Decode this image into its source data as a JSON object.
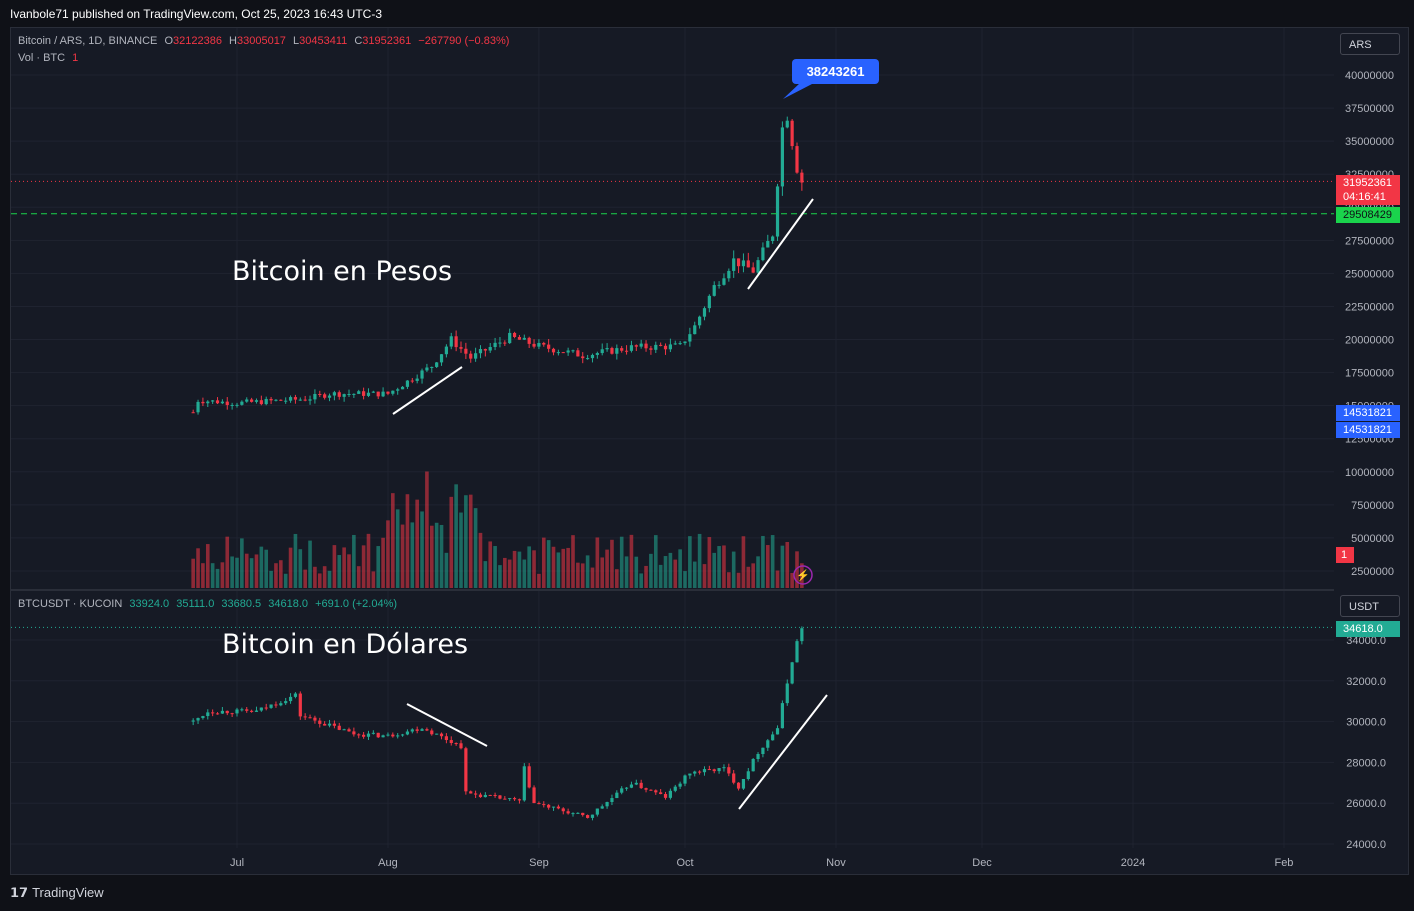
{
  "publish_line": "Ivanbole71 published on TradingView.com, Oct 25, 2023 16:43 UTC-3",
  "footer": {
    "brand": "TradingView",
    "logo": "tradingview-logo-icon"
  },
  "colors": {
    "up": "#22ab94",
    "down": "#f23645",
    "background": "#161a25",
    "grid": "#232733",
    "accent": "#2962ff",
    "dashed_line": "#1ad34c"
  },
  "top_pane": {
    "legend": {
      "symbol": "Bitcoin / ARS, 1D, BINANCE",
      "o_label": "O",
      "o_value": "32122386",
      "h_label": "H",
      "h_value": "33005017",
      "l_label": "L",
      "l_value": "30453411",
      "c_label": "C",
      "c_value": "31952361",
      "change": "−267790 (−0.83%)",
      "vol_label": "Vol · BTC",
      "vol_value": "1"
    },
    "currency": "ARS",
    "annotation": "Bitcoin en Pesos",
    "high_bubble": "38243261",
    "price_labels": {
      "last": "31952361",
      "countdown": "04:16:41",
      "dashed": "29508429",
      "blue_1": "14531821",
      "blue_2": "14531821",
      "volume": "1"
    }
  },
  "bottom_pane": {
    "legend": {
      "symbol": "BTCUSDT · KUCOIN",
      "o": "33924.0",
      "h": "35111.0",
      "l": "33680.5",
      "c": "34618.0",
      "change": "+691.0 (+2.04%)"
    },
    "currency": "USDT",
    "annotation": "Bitcoin en Dólares",
    "price_labels": {
      "last": "34618.0"
    }
  },
  "chart_data": [
    {
      "type": "candlestick",
      "title": "Bitcoin / ARS, 1D, BINANCE",
      "x_ticks": [
        "Jul",
        "Aug",
        "Sep",
        "Oct",
        "Nov",
        "Dec",
        "2024",
        "Feb"
      ],
      "y_ticks": [
        "2500000",
        "5000000",
        "7500000",
        "10000000",
        "12500000",
        "15000000",
        "17500000",
        "20000000",
        "22500000",
        "25000000",
        "27500000",
        "30000000",
        "32500000",
        "35000000",
        "37500000",
        "40000000"
      ],
      "ylim": [
        0,
        41500000
      ],
      "close_path": [
        {
          "date": "2023-06-22",
          "close": 14500000
        },
        {
          "date": "2023-06-23",
          "close": 15400000
        },
        {
          "date": "2023-07-01",
          "close": 15200000
        },
        {
          "date": "2023-07-15",
          "close": 15500000
        },
        {
          "date": "2023-07-20",
          "close": 15900000
        },
        {
          "date": "2023-08-01",
          "close": 15900000
        },
        {
          "date": "2023-08-10",
          "close": 18000000
        },
        {
          "date": "2023-08-14",
          "close": 20000000
        },
        {
          "date": "2023-08-18",
          "close": 18600000
        },
        {
          "date": "2023-08-26",
          "close": 20200000
        },
        {
          "date": "2023-09-01",
          "close": 19500000
        },
        {
          "date": "2023-09-10",
          "close": 18800000
        },
        {
          "date": "2023-09-20",
          "close": 19400000
        },
        {
          "date": "2023-09-30",
          "close": 19500000
        },
        {
          "date": "2023-10-03",
          "close": 21000000
        },
        {
          "date": "2023-10-07",
          "close": 24000000
        },
        {
          "date": "2023-10-11",
          "close": 26000000
        },
        {
          "date": "2023-10-15",
          "close": 25200000
        },
        {
          "date": "2023-10-19",
          "close": 28000000
        },
        {
          "date": "2023-10-21",
          "close": 36000000
        },
        {
          "date": "2023-10-22",
          "close": 37000000
        },
        {
          "date": "2023-10-24",
          "close": 33000000
        },
        {
          "date": "2023-10-25",
          "close": 31952361
        }
      ],
      "volume_ylim": [
        0,
        14000
      ],
      "volume_note": "volume bars in BTC, pane bottom area"
    },
    {
      "type": "candlestick",
      "title": "BTCUSDT · KUCOIN",
      "y_ticks": [
        "24000.0",
        "26000.0",
        "28000.0",
        "30000.0",
        "32000.0",
        "34000.0"
      ],
      "ylim": [
        24000,
        35000
      ],
      "close_path": [
        {
          "date": "2023-06-22",
          "close": 30000
        },
        {
          "date": "2023-06-25",
          "close": 30500
        },
        {
          "date": "2023-07-05",
          "close": 30500
        },
        {
          "date": "2023-07-13",
          "close": 31300
        },
        {
          "date": "2023-07-14",
          "close": 30300
        },
        {
          "date": "2023-07-25",
          "close": 29400
        },
        {
          "date": "2023-08-01",
          "close": 29300
        },
        {
          "date": "2023-08-08",
          "close": 29700
        },
        {
          "date": "2023-08-16",
          "close": 28800
        },
        {
          "date": "2023-08-17",
          "close": 26500
        },
        {
          "date": "2023-08-28",
          "close": 26100
        },
        {
          "date": "2023-08-29",
          "close": 27700
        },
        {
          "date": "2023-08-31",
          "close": 26000
        },
        {
          "date": "2023-09-11",
          "close": 25300
        },
        {
          "date": "2023-09-20",
          "close": 27000
        },
        {
          "date": "2023-09-27",
          "close": 26300
        },
        {
          "date": "2023-10-02",
          "close": 27500
        },
        {
          "date": "2023-10-09",
          "close": 27700
        },
        {
          "date": "2023-10-12",
          "close": 26800
        },
        {
          "date": "2023-10-16",
          "close": 28500
        },
        {
          "date": "2023-10-20",
          "close": 29700
        },
        {
          "date": "2023-10-23",
          "close": 33000
        },
        {
          "date": "2023-10-24",
          "close": 33900
        },
        {
          "date": "2023-10-25",
          "close": 34618
        }
      ]
    }
  ]
}
